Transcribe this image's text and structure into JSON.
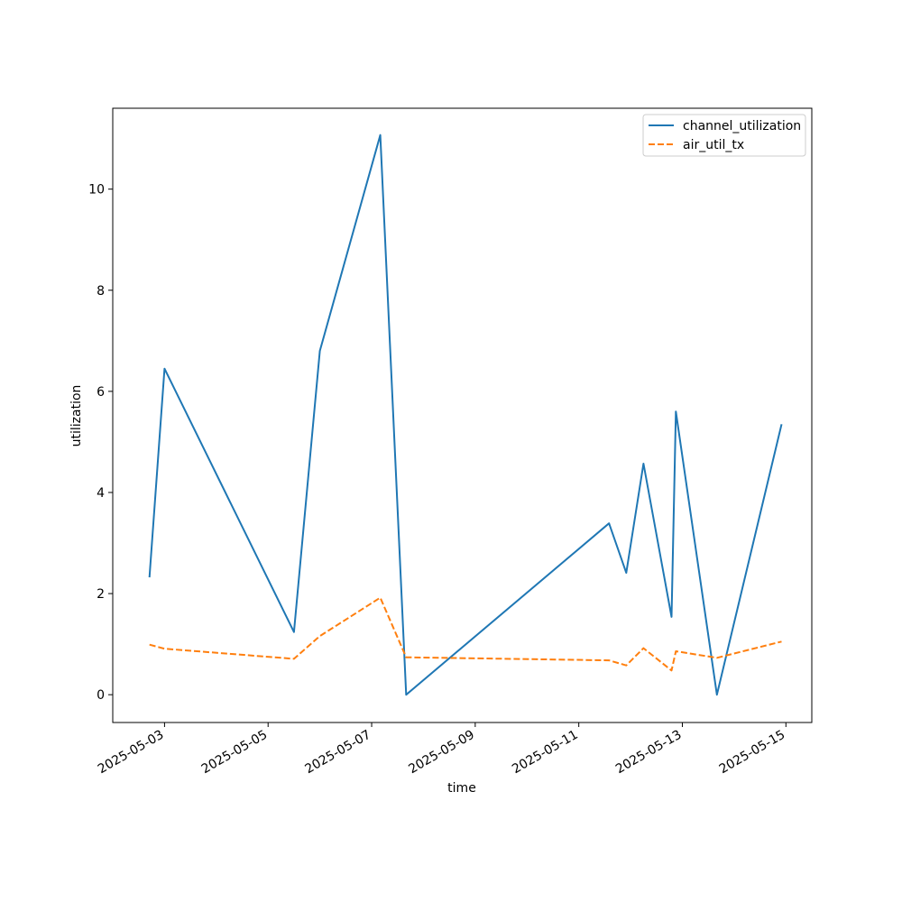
{
  "chart_data": {
    "type": "line",
    "title": "",
    "xlabel": "time",
    "ylabel": "utilization",
    "x_tick_labels": [
      "2025-05-03",
      "2025-05-05",
      "2025-05-07",
      "2025-05-09",
      "2025-05-11",
      "2025-05-13",
      "2025-05-15"
    ],
    "y_ticks": [
      0,
      2,
      4,
      6,
      8,
      10
    ],
    "xlim": [
      "2025-05-02T00:00",
      "2025-05-15T12:00"
    ],
    "ylim": [
      -0.55,
      11.6
    ],
    "grid": false,
    "legend_position": "top-right",
    "series": [
      {
        "name": "channel_utilization",
        "color": "#1f77b4",
        "style": "solid",
        "x": [
          "2025-05-02T17:00",
          "2025-05-03T00:00",
          "2025-05-05T12:00",
          "2025-05-06T00:00",
          "2025-05-07T04:00",
          "2025-05-07T16:00",
          "2025-05-11T14:00",
          "2025-05-11T22:00",
          "2025-05-12T06:00",
          "2025-05-12T19:00",
          "2025-05-12T21:00",
          "2025-05-13T16:00",
          "2025-05-14T22:00"
        ],
        "values": [
          2.32,
          6.45,
          1.24,
          6.8,
          11.07,
          0.0,
          3.39,
          2.41,
          4.57,
          1.54,
          5.6,
          0.0,
          5.35
        ]
      },
      {
        "name": "air_util_tx",
        "color": "#ff7f0e",
        "style": "dashed",
        "x": [
          "2025-05-02T17:00",
          "2025-05-03T00:00",
          "2025-05-05T12:00",
          "2025-05-06T00:00",
          "2025-05-07T04:00",
          "2025-05-07T16:00",
          "2025-05-11T14:00",
          "2025-05-11T22:00",
          "2025-05-12T06:00",
          "2025-05-12T19:00",
          "2025-05-12T21:00",
          "2025-05-13T16:00",
          "2025-05-14T22:00"
        ],
        "values": [
          0.99,
          0.91,
          0.71,
          1.16,
          1.92,
          0.74,
          0.68,
          0.58,
          0.92,
          0.48,
          0.86,
          0.73,
          1.05
        ]
      }
    ]
  }
}
